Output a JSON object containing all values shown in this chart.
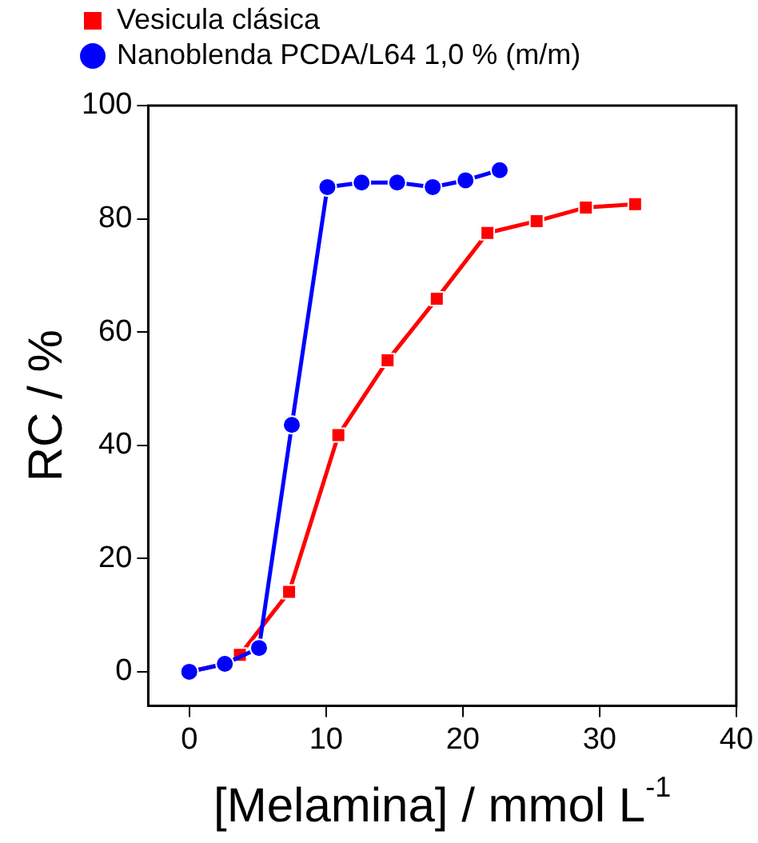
{
  "chart_data": {
    "type": "line",
    "xlabel": "[Melamina] / mmol L$^{-1}$",
    "ylabel": "RC / %",
    "series": [
      {
        "name": "Vesicula clásica",
        "color": "#ff0000",
        "marker": "square",
        "x": [
          0,
          2.6,
          3.7,
          7.3,
          10.9,
          14.5,
          18.1,
          21.8,
          25.4,
          29,
          32.6
        ],
        "values": [
          0,
          1.4,
          3,
          14.1,
          41.8,
          55,
          65.9,
          77.5,
          79.6,
          82,
          82.6
        ]
      },
      {
        "name": "Nanoblenda PCDA/L64 1,0 % (m/m)",
        "color": "#0000ff",
        "marker": "circle",
        "x": [
          0,
          2.6,
          5.1,
          7.5,
          10.1,
          12.6,
          15.2,
          17.8,
          20.2,
          22.7
        ],
        "values": [
          0,
          1.4,
          4.2,
          43.6,
          85.6,
          86.4,
          86.4,
          85.6,
          86.8,
          88.6
        ]
      }
    ],
    "xlim": [
      -3,
      40
    ],
    "xticks": [
      0,
      10,
      20,
      30,
      40
    ],
    "ylim": [
      -6,
      100
    ],
    "yticks": [
      0,
      20,
      40,
      60,
      80,
      100
    ],
    "grid": false,
    "legend": "top left",
    "line_style": "solid"
  }
}
